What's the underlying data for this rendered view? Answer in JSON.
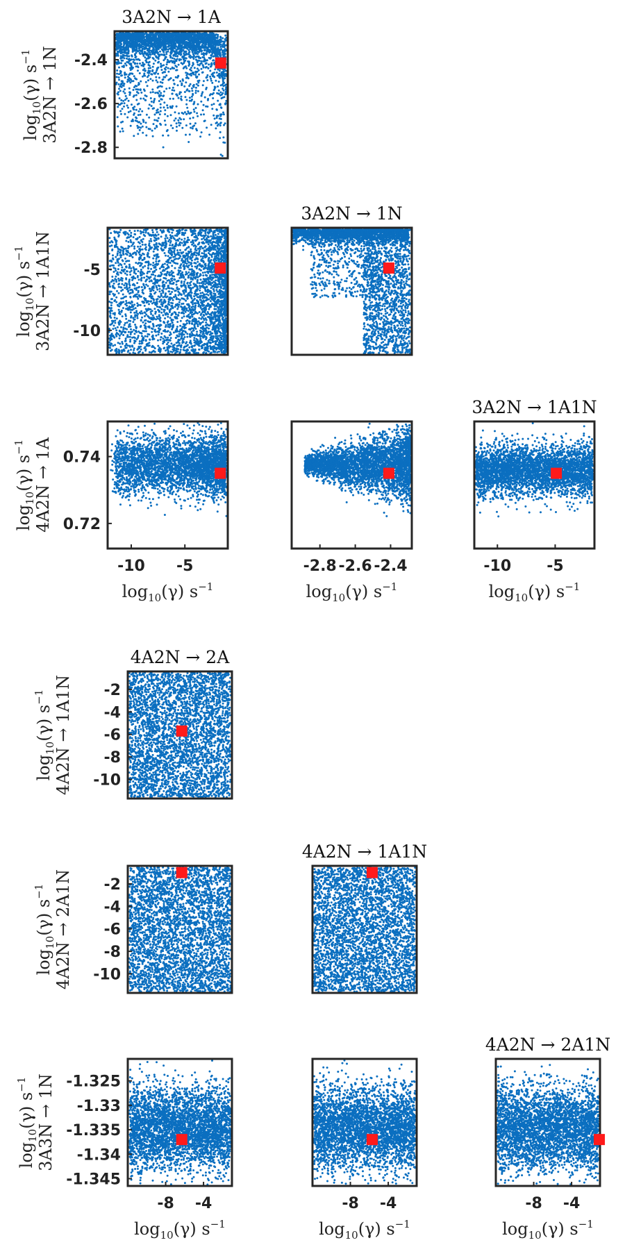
{
  "colors": {
    "points": "#0b6fc0",
    "marker": "#ff1a1a",
    "frame": "#262626"
  },
  "axis_unit_label": {
    "main": "log",
    "sub": "10",
    "paren": "(γ)",
    "unit": "s",
    "exp": "−1"
  },
  "chart_data": [
    {
      "type": "scatter",
      "title": "3A2N → 1A",
      "ylabel": "3A2N → 1N",
      "x_param": "3A2N → 1A",
      "y_param": "3A2N → 1N",
      "xlim": [
        -12.2,
        -1.0
      ],
      "ylim": [
        -2.85,
        -2.27
      ],
      "yticks": [
        "-2.4",
        "-2.6",
        "-2.8"
      ],
      "ytick_values": [
        -2.4,
        -2.6,
        -2.8
      ],
      "xticks": [],
      "xtick_values": [],
      "marker": {
        "x": -1.7,
        "y": -2.415
      },
      "n_points": 3000,
      "seed": 11
    },
    {
      "type": "scatter",
      "title": "",
      "ylabel": "3A2N → 1A1N",
      "x_param": "3A2N → 1A",
      "y_param": "3A2N → 1A1N",
      "xlim": [
        -12.2,
        -1.0
      ],
      "ylim": [
        -12.0,
        -1.6
      ],
      "yticks": [
        "-5",
        "-10"
      ],
      "ytick_values": [
        -5,
        -10
      ],
      "xticks": [],
      "xtick_values": [],
      "marker": {
        "x": -1.7,
        "y": -4.9
      },
      "n_points": 3600,
      "seed": 22
    },
    {
      "type": "scatter",
      "title": "3A2N → 1N",
      "ylabel": "",
      "x_param": "3A2N → 1N",
      "y_param": "3A2N → 1A1N",
      "xlim": [
        -2.96,
        -2.28
      ],
      "ylim": [
        -12.0,
        -1.6
      ],
      "yticks": [],
      "ytick_values": [],
      "xticks": [],
      "xtick_values": [],
      "marker": {
        "x": -2.41,
        "y": -4.9
      },
      "n_points": 3600,
      "seed": 33
    },
    {
      "type": "scatter",
      "title": "",
      "ylabel": "4A2N → 1A",
      "x_param": "3A2N → 1A",
      "y_param": "4A2N → 1A",
      "xlim": [
        -12.2,
        -1.0
      ],
      "ylim": [
        0.7125,
        0.7505
      ],
      "yticks": [
        "0.74",
        "0.72"
      ],
      "ytick_values": [
        0.74,
        0.72
      ],
      "xticks": [
        "-10",
        "-5"
      ],
      "xtick_values": [
        -10,
        -5
      ],
      "marker": {
        "x": -1.7,
        "y": 0.735
      },
      "n_points": 3600,
      "seed": 44
    },
    {
      "type": "scatter",
      "title": "",
      "ylabel": "",
      "x_param": "3A2N → 1N",
      "y_param": "4A2N → 1A",
      "xlim": [
        -2.96,
        -2.28
      ],
      "ylim": [
        0.7125,
        0.7505
      ],
      "yticks": [],
      "ytick_values": [],
      "xticks": [
        "-2.8",
        "-2.6",
        "-2.4"
      ],
      "xtick_values": [
        -2.8,
        -2.6,
        -2.4
      ],
      "marker": {
        "x": -2.41,
        "y": 0.735
      },
      "n_points": 3600,
      "seed": 55
    },
    {
      "type": "scatter",
      "title": "3A2N → 1A1N",
      "ylabel": "",
      "x_param": "3A2N → 1A1N",
      "y_param": "4A2N → 1A",
      "xlim": [
        -12.0,
        -1.6
      ],
      "ylim": [
        0.7125,
        0.7505
      ],
      "yticks": [],
      "ytick_values": [],
      "xticks": [
        "-10",
        "-5"
      ],
      "xtick_values": [
        -10,
        -5
      ],
      "marker": {
        "x": -4.9,
        "y": 0.735
      },
      "n_points": 3600,
      "seed": 66
    },
    {
      "type": "scatter",
      "title": "4A2N → 2A",
      "ylabel": "4A2N → 1A1N",
      "x_param": "4A2N → 2A",
      "y_param": "4A2N → 1A1N",
      "xlim": [
        -12.0,
        -1.0
      ],
      "ylim": [
        -11.7,
        -0.4
      ],
      "yticks": [
        "-2",
        "-4",
        "-6",
        "-8",
        "-10"
      ],
      "ytick_values": [
        -2,
        -4,
        -6,
        -8,
        -10
      ],
      "xticks": [],
      "xtick_values": [],
      "marker": {
        "x": -6.3,
        "y": -5.7
      },
      "n_points": 3600,
      "seed": 77
    },
    {
      "type": "scatter",
      "title": "",
      "ylabel": "4A2N → 2A1N",
      "x_param": "4A2N → 2A",
      "y_param": "4A2N → 2A1N",
      "xlim": [
        -12.0,
        -1.0
      ],
      "ylim": [
        -11.7,
        -0.4
      ],
      "yticks": [
        "-2",
        "-4",
        "-6",
        "-8",
        "-10"
      ],
      "ytick_values": [
        -2,
        -4,
        -6,
        -8,
        -10
      ],
      "xticks": [],
      "xtick_values": [],
      "marker": {
        "x": -6.3,
        "y": -1.0
      },
      "n_points": 3600,
      "seed": 88
    },
    {
      "type": "scatter",
      "title": "4A2N → 1A1N",
      "ylabel": "",
      "x_param": "4A2N → 1A1N",
      "y_param": "4A2N → 2A1N",
      "xlim": [
        -12.0,
        -1.0
      ],
      "ylim": [
        -11.7,
        -0.4
      ],
      "yticks": [],
      "ytick_values": [],
      "xticks": [],
      "xtick_values": [],
      "marker": {
        "x": -5.7,
        "y": -1.0
      },
      "n_points": 3600,
      "seed": 99
    },
    {
      "type": "scatter",
      "title": "",
      "ylabel": "3A3N → 1N",
      "x_param": "4A2N → 2A",
      "y_param": "3A3N → 1N",
      "xlim": [
        -12.0,
        -1.0
      ],
      "ylim": [
        -1.3465,
        -1.3205
      ],
      "yticks": [
        "-1.325",
        "-1.33",
        "-1.335",
        "-1.34",
        "-1.345"
      ],
      "ytick_values": [
        -1.325,
        -1.33,
        -1.335,
        -1.34,
        -1.345
      ],
      "xticks": [
        "-8",
        "-4"
      ],
      "xtick_values": [
        -8,
        -4
      ],
      "marker": {
        "x": -6.3,
        "y": -1.337
      },
      "n_points": 3600,
      "seed": 111
    },
    {
      "type": "scatter",
      "title": "",
      "ylabel": "",
      "x_param": "4A2N → 1A1N",
      "y_param": "3A3N → 1N",
      "xlim": [
        -12.0,
        -1.0
      ],
      "ylim": [
        -1.3465,
        -1.3205
      ],
      "yticks": [],
      "ytick_values": [],
      "xticks": [
        "-8",
        "-4"
      ],
      "xtick_values": [
        -8,
        -4
      ],
      "marker": {
        "x": -5.7,
        "y": -1.337
      },
      "n_points": 3600,
      "seed": 122
    },
    {
      "type": "scatter",
      "title": "4A2N → 2A1N",
      "ylabel": "",
      "x_param": "4A2N → 2A1N",
      "y_param": "3A3N → 1N",
      "xlim": [
        -12.0,
        -1.0
      ],
      "ylim": [
        -1.3465,
        -1.3205
      ],
      "yticks": [],
      "ytick_values": [],
      "xticks": [
        "-8",
        "-4"
      ],
      "xtick_values": [
        -8,
        -4
      ],
      "marker": {
        "x": -1.0,
        "y": -1.337
      },
      "n_points": 3600,
      "seed": 133
    }
  ]
}
